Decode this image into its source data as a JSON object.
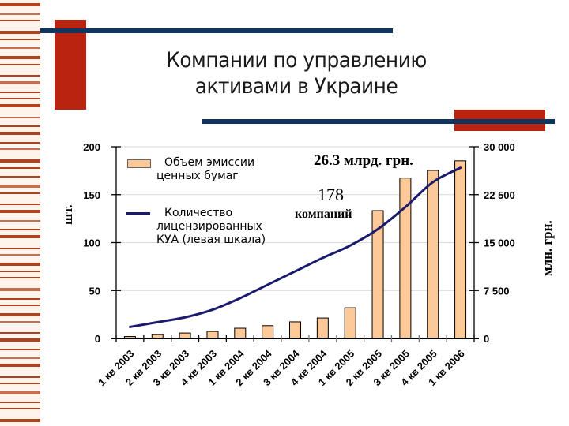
{
  "slide": {
    "title_line1": "Компании по управлению",
    "title_line2": "активами в Украине",
    "colors": {
      "accent_red": "#b8240f",
      "accent_navy": "#0f345f",
      "stripe_color": "#b0431f",
      "stripe_bg": "#fff4ec",
      "bar_fill": "#fdc998",
      "line_color": "#1a1a6e"
    }
  },
  "annotations": {
    "total_volume": "26.3 млрд. грн.",
    "company_count": "178",
    "company_label": "компаний"
  },
  "legend": {
    "bars_line1": "Объем эмиссии",
    "bars_line2": "ценных бумаг",
    "line_line1": "Количество",
    "line_line2": "лицензированных",
    "line_line3": "КУА (левая шкала)"
  },
  "axes": {
    "left_title": "шт.",
    "right_title": "млн. грн.",
    "left_ticks": [
      "200",
      "150",
      "100",
      "50",
      "0"
    ],
    "right_ticks": [
      "30 000",
      "22 500",
      "15 000",
      "7 500",
      "0"
    ]
  },
  "chart_data": {
    "type": "bar",
    "title": "Компании по управлению активами в Украине",
    "categories": [
      "1 кв 2003",
      "2 кв 2003",
      "3 кв 2003",
      "4 кв 2003",
      "1 кв 2004",
      "2 кв 2004",
      "3 кв 2004",
      "4 кв 2004",
      "1 кв 2005",
      "2 кв 2005",
      "3 кв 2005",
      "4 кв 2005",
      "1 кв 2006"
    ],
    "series": [
      {
        "name": "Объем эмиссии ценных бумаг",
        "type": "bar",
        "axis": "right",
        "unit": "млн. грн.",
        "values": [
          300,
          600,
          850,
          1100,
          1600,
          2000,
          2600,
          3200,
          4800,
          20000,
          25100,
          26300,
          27800
        ]
      },
      {
        "name": "Количество лицензированных КУА (левая шкала)",
        "type": "line",
        "axis": "left",
        "unit": "шт.",
        "values": [
          12,
          17,
          22,
          30,
          42,
          56,
          70,
          84,
          97,
          114,
          137,
          163,
          178
        ]
      }
    ],
    "ylabel_left": "шт.",
    "ylabel_right": "млн. грн.",
    "ylim_left": [
      0,
      200
    ],
    "ylim_right": [
      0,
      30000
    ],
    "yticks_left": [
      0,
      50,
      100,
      150,
      200
    ],
    "yticks_right": [
      0,
      7500,
      15000,
      22500,
      30000
    ],
    "grid": true,
    "legend_position": "upper-left inside",
    "annotations": [
      "26.3 млрд. грн.",
      "178 компаний"
    ]
  }
}
